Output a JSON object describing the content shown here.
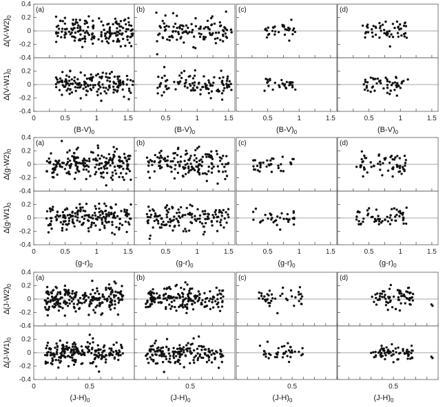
{
  "chart_data": {
    "type": "scatter",
    "panel_labels": [
      "(a)",
      "(b)",
      "(c)",
      "(d)"
    ],
    "groups": [
      {
        "xlabel": "(B-V)",
        "xlabel_sub": "0",
        "xlim": [
          0,
          1.6
        ],
        "xticks": [
          "0",
          "0.5",
          "1",
          "1.5"
        ],
        "top_ylabel": "∆(V-W2)",
        "bottom_ylabel": "∆(V-W1)",
        "ylabel_sub": "0",
        "ylim": [
          -0.4,
          0.4
        ],
        "yticks_top": [
          "0.4",
          "0.2",
          "0",
          "-0.2",
          "-0.4"
        ],
        "yticks_bottom": [
          "0.2",
          "0",
          "-0.2",
          "-0.4"
        ],
        "panel_x_ranges": [
          [
            0.35,
            1.58
          ],
          [
            0.35,
            1.55
          ],
          [
            0.45,
            0.95
          ],
          [
            0.4,
            1.12
          ]
        ],
        "panel_counts": [
          170,
          110,
          30,
          55
        ],
        "scatter_sd": [
          0.1,
          0.1,
          0.06,
          0.08
        ]
      },
      {
        "xlabel": "(g-r)",
        "xlabel_sub": "0",
        "xlim": [
          0,
          1.6
        ],
        "xticks": [
          "0",
          "0.5",
          "1",
          "1.5"
        ],
        "top_ylabel": "∆(g-W2)",
        "bottom_ylabel": "∆(g-W1)",
        "ylabel_sub": "0",
        "ylim": [
          -0.4,
          0.4
        ],
        "yticks_top": [
          "0.4",
          "0.2",
          "0",
          "-0.2",
          "-0.4"
        ],
        "yticks_bottom": [
          "0.2",
          "0",
          "-0.2",
          "-0.4"
        ],
        "panel_x_ranges": [
          [
            0.2,
            1.55
          ],
          [
            0.2,
            1.5
          ],
          [
            0.25,
            0.95
          ],
          [
            0.3,
            1.1
          ]
        ],
        "panel_counts": [
          200,
          150,
          35,
          60
        ],
        "scatter_sd": [
          0.11,
          0.11,
          0.07,
          0.09
        ]
      },
      {
        "xlabel": "(J-H)",
        "xlabel_sub": "0",
        "xlim": [
          0,
          0.9
        ],
        "xticks": [
          "0",
          "0.5"
        ],
        "top_ylabel": "∆(J-W2)",
        "bottom_ylabel": "∆(J-W1)",
        "ylabel_sub": "0",
        "ylim": [
          -0.4,
          0.4
        ],
        "yticks_top": [
          "0.4",
          "0.2",
          "0",
          "-0.2",
          "-0.4"
        ],
        "yticks_bottom": [
          "0.2",
          "0",
          "-0.2",
          "-0.4"
        ],
        "panel_x_ranges": [
          [
            0.1,
            0.8
          ],
          [
            0.1,
            0.8
          ],
          [
            0.2,
            0.6
          ],
          [
            0.3,
            0.68
          ]
        ],
        "panel_counts": [
          220,
          180,
          40,
          70
        ],
        "scatter_sd": [
          0.1,
          0.1,
          0.07,
          0.08
        ]
      }
    ]
  },
  "colors": {
    "axis": "#555555",
    "zero_line": "#888888",
    "points": "#111111"
  }
}
